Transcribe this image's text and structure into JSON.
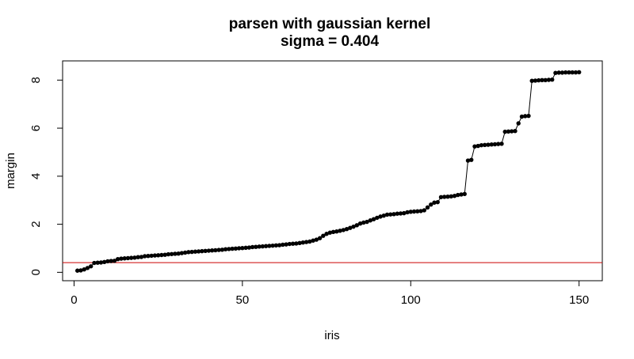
{
  "chart_data": {
    "type": "line",
    "title": "parsen with gaussian kernel",
    "subtitle": "sigma = 0.404",
    "xlabel": "iris",
    "ylabel": "margin",
    "xlim": [
      -3.4,
      156.9
    ],
    "ylim": [
      -0.35,
      8.8
    ],
    "x_ticks": [
      0,
      50,
      100,
      150
    ],
    "y_ticks": [
      0,
      2,
      4,
      6,
      8
    ],
    "grid": false,
    "threshold": {
      "y": 0.404,
      "color": "#cc0000"
    },
    "series": [
      {
        "color": "#000000",
        "marker": "filled-circle",
        "x": [
          1,
          2,
          3,
          4,
          5,
          6,
          7,
          8,
          9,
          10,
          11,
          12,
          13,
          14,
          15,
          16,
          17,
          18,
          19,
          20,
          21,
          22,
          23,
          24,
          25,
          26,
          27,
          28,
          29,
          30,
          31,
          32,
          33,
          34,
          35,
          36,
          37,
          38,
          39,
          40,
          41,
          42,
          43,
          44,
          45,
          46,
          47,
          48,
          49,
          50,
          51,
          52,
          53,
          54,
          55,
          56,
          57,
          58,
          59,
          60,
          61,
          62,
          63,
          64,
          65,
          66,
          67,
          68,
          69,
          70,
          71,
          72,
          73,
          74,
          75,
          76,
          77,
          78,
          79,
          80,
          81,
          82,
          83,
          84,
          85,
          86,
          87,
          88,
          89,
          90,
          91,
          92,
          93,
          94,
          95,
          96,
          97,
          98,
          99,
          100,
          101,
          102,
          103,
          104,
          105,
          106,
          107,
          108,
          109,
          110,
          111,
          112,
          113,
          114,
          115,
          116,
          117,
          118,
          119,
          120,
          121,
          122,
          123,
          124,
          125,
          126,
          127,
          128,
          129,
          130,
          131,
          132,
          133,
          134,
          135,
          136,
          137,
          138,
          139,
          140,
          141,
          142,
          143,
          144,
          145,
          146,
          147,
          148,
          149,
          150
        ],
        "values": [
          0.07,
          0.08,
          0.12,
          0.18,
          0.25,
          0.39,
          0.4,
          0.41,
          0.43,
          0.46,
          0.47,
          0.48,
          0.55,
          0.57,
          0.58,
          0.59,
          0.6,
          0.61,
          0.63,
          0.64,
          0.67,
          0.68,
          0.69,
          0.7,
          0.71,
          0.72,
          0.73,
          0.75,
          0.76,
          0.77,
          0.78,
          0.8,
          0.82,
          0.84,
          0.85,
          0.86,
          0.87,
          0.88,
          0.89,
          0.9,
          0.91,
          0.92,
          0.93,
          0.94,
          0.96,
          0.97,
          0.98,
          0.99,
          1.0,
          1.01,
          1.02,
          1.03,
          1.05,
          1.06,
          1.07,
          1.08,
          1.09,
          1.1,
          1.11,
          1.12,
          1.13,
          1.15,
          1.16,
          1.18,
          1.19,
          1.2,
          1.22,
          1.24,
          1.26,
          1.28,
          1.32,
          1.36,
          1.42,
          1.52,
          1.6,
          1.65,
          1.68,
          1.7,
          1.73,
          1.76,
          1.8,
          1.85,
          1.9,
          1.96,
          2.03,
          2.07,
          2.1,
          2.16,
          2.21,
          2.27,
          2.32,
          2.36,
          2.4,
          2.41,
          2.42,
          2.44,
          2.45,
          2.46,
          2.5,
          2.52,
          2.53,
          2.54,
          2.55,
          2.58,
          2.7,
          2.82,
          2.9,
          2.92,
          3.13,
          3.14,
          3.15,
          3.16,
          3.18,
          3.22,
          3.24,
          3.26,
          4.65,
          4.68,
          5.24,
          5.26,
          5.29,
          5.3,
          5.31,
          5.32,
          5.33,
          5.34,
          5.35,
          5.85,
          5.86,
          5.87,
          5.88,
          6.2,
          6.48,
          6.5,
          6.51,
          7.97,
          7.98,
          7.99,
          8.0,
          8.0,
          8.01,
          8.02,
          8.3,
          8.31,
          8.31,
          8.32,
          8.32,
          8.32,
          8.32,
          8.33
        ]
      }
    ]
  }
}
